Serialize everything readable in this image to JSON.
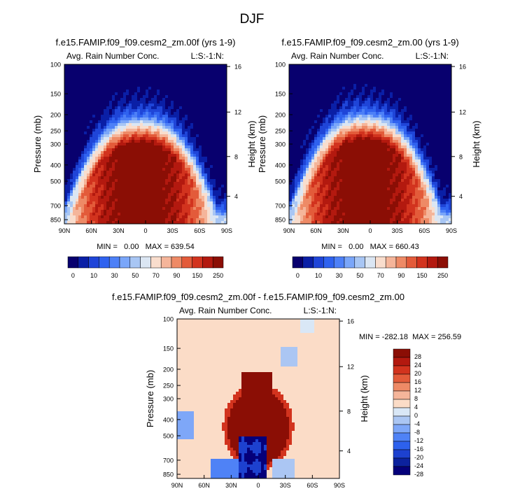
{
  "page_title": "DJF",
  "chart_data": [
    {
      "type": "heatmap",
      "id": "panel1",
      "title": "f.e15.FAMIP.f09_f09.cesm2_zm.00f (yrs 1-9)",
      "left_label": "Avg. Rain Number Conc.",
      "right_label": "L:S:-1:N:",
      "xlabel": "",
      "ylabel": "Pressure (mb)",
      "ylabel_right": "Height (km)",
      "x_ticks": [
        "90N",
        "60N",
        "30N",
        "0",
        "30S",
        "60S",
        "90S"
      ],
      "y_ticks": [
        "100",
        "150",
        "200",
        "250",
        "300",
        "400",
        "500",
        "700",
        "850"
      ],
      "y_ticks_right": [
        "16",
        "12",
        "8",
        "4"
      ],
      "min": 0.0,
      "max": 639.54,
      "minmax_text": "MIN =   0.00   MAX = 639.54",
      "colorbar_levels": [
        "0",
        "10",
        "30",
        "50",
        "70",
        "90",
        "150",
        "250"
      ]
    },
    {
      "type": "heatmap",
      "id": "panel2",
      "title": "f.e15.FAMIP.f09_f09.cesm2_zm.00 (yrs 1-9)",
      "left_label": "Avg. Rain Number Conc.",
      "right_label": "L:S:-1:N:",
      "xlabel": "",
      "ylabel": "Pressure (mb)",
      "ylabel_right": "Height (km)",
      "x_ticks": [
        "90N",
        "60N",
        "30N",
        "0",
        "30S",
        "60S",
        "90S"
      ],
      "y_ticks": [
        "100",
        "150",
        "200",
        "250",
        "300",
        "400",
        "500",
        "700",
        "850"
      ],
      "y_ticks_right": [
        "16",
        "12",
        "8",
        "4"
      ],
      "min": 0.0,
      "max": 660.43,
      "minmax_text": "MIN =   0.00   MAX = 660.43",
      "colorbar_levels": [
        "0",
        "10",
        "30",
        "50",
        "70",
        "90",
        "150",
        "250"
      ]
    },
    {
      "type": "heatmap",
      "id": "panel3",
      "title": "f.e15.FAMIP.f09_f09.cesm2_zm.00f - f.e15.FAMIP.f09_f09.cesm2_zm.00",
      "left_label": "Avg. Rain Number Conc.",
      "right_label": "L:S:-1:N:",
      "xlabel": "",
      "ylabel": "Pressure (mb)",
      "ylabel_right": "Height (km)",
      "x_ticks": [
        "90N",
        "60N",
        "30N",
        "0",
        "30S",
        "60S",
        "90S"
      ],
      "y_ticks": [
        "100",
        "150",
        "200",
        "250",
        "300",
        "400",
        "500",
        "700",
        "850"
      ],
      "y_ticks_right": [
        "16",
        "12",
        "8",
        "4"
      ],
      "min": -282.18,
      "max": 256.59,
      "minmax_text": "MIN = -282.18  MAX = 256.59",
      "colorbar_levels": [
        "28",
        "24",
        "20",
        "16",
        "12",
        "8",
        "4",
        "0",
        "-4",
        "-8",
        "-12",
        "-16",
        "-20",
        "-24",
        "-28"
      ]
    }
  ],
  "colors": {
    "seq_palette": [
      "#08006e",
      "#0a1fa6",
      "#1f45d8",
      "#2f62ef",
      "#4d80f7",
      "#7aa6f9",
      "#a8c6f4",
      "#dbe6f3",
      "#f9ddcd",
      "#f5b59a",
      "#ee8a66",
      "#e35b3a",
      "#d2331e",
      "#b3190f",
      "#8b0e05"
    ],
    "div_palette": [
      "#8b0e05",
      "#b3190f",
      "#d2331e",
      "#e35b3a",
      "#ee8a66",
      "#f5b59a",
      "#fbdcc7",
      "#d9e7f6",
      "#abc6f3",
      "#7ea7f8",
      "#4f82f6",
      "#2d61ed",
      "#1d41cf",
      "#0c229e",
      "#05007a"
    ]
  }
}
